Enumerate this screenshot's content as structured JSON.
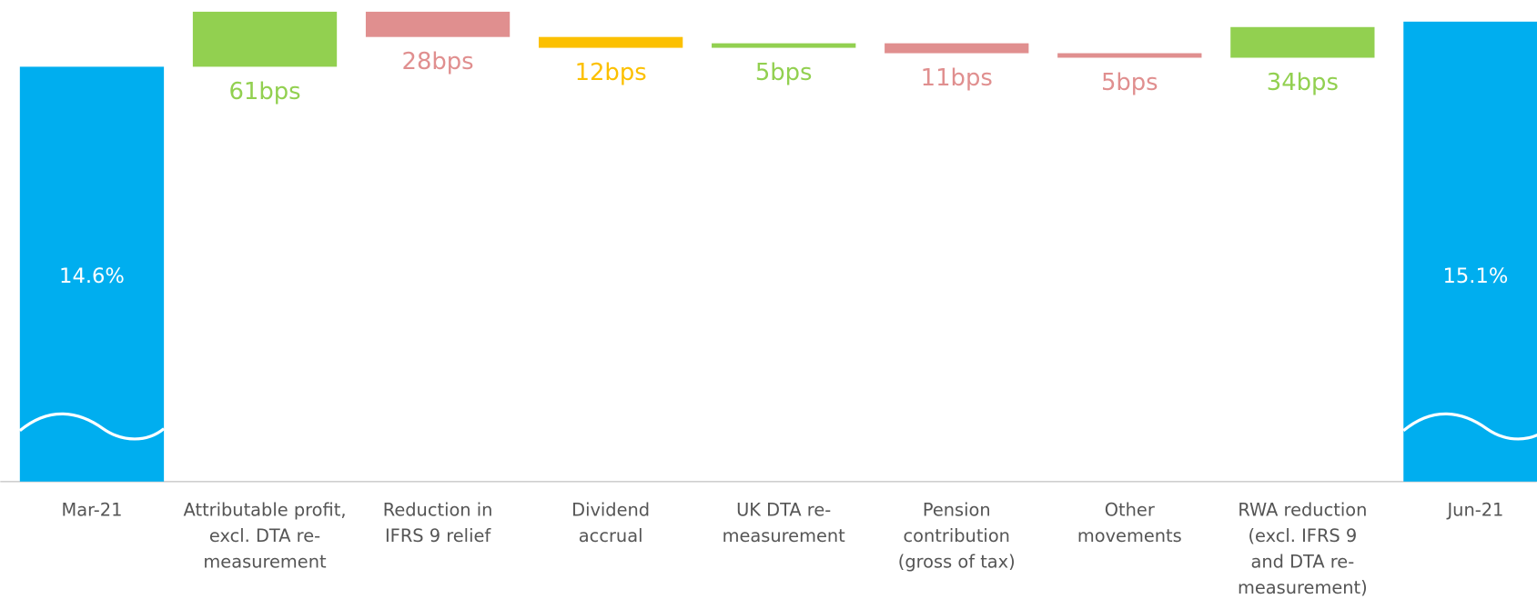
{
  "chart_data": {
    "type": "waterfall",
    "categories": [
      [
        "Mar-21"
      ],
      [
        "Attributable profit,",
        "excl. DTA re-",
        "measurement"
      ],
      [
        "Reduction in",
        "IFRS 9 relief"
      ],
      [
        "Dividend",
        "accrual"
      ],
      [
        "UK DTA re-",
        "measurement"
      ],
      [
        "Pension",
        "contribution",
        "(gross of tax)"
      ],
      [
        "Other",
        "movements"
      ],
      [
        "RWA reduction",
        "(excl. IFRS 9",
        "and DTA re-",
        "measurement)"
      ],
      [
        "Jun-21"
      ]
    ],
    "values": [
      14.6,
      0.61,
      -0.28,
      -0.12,
      0.05,
      -0.11,
      -0.05,
      0.34,
      15.1
    ],
    "value_labels": [
      "14.6%",
      "61bps",
      "28bps",
      "12bps",
      "5bps",
      "11bps",
      "5bps",
      "34bps",
      "15.1%"
    ],
    "is_total": [
      true,
      false,
      false,
      false,
      false,
      false,
      false,
      false,
      true
    ],
    "colors": [
      "#00aeef",
      "#92d050",
      "#e08f8f",
      "#fcc000",
      "#92d050",
      "#e08f8f",
      "#e08f8f",
      "#92d050",
      "#00aeef"
    ],
    "ylim": [
      10,
      15.34
    ]
  }
}
